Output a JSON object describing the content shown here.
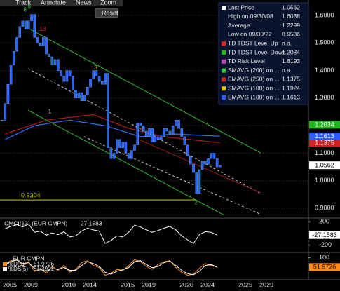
{
  "toolbar": {
    "items": [
      "Track",
      "Annotate",
      "News",
      "Zoom"
    ],
    "reset": "Reset"
  },
  "chart_data": [
    {
      "type": "candlestick",
      "x": [
        2006.25,
        2006.5,
        2006.75,
        2007,
        2007.25,
        2007.5,
        2007.75,
        2008,
        2008.25,
        2008.5,
        2008.75,
        2009,
        2009.25,
        2009.5,
        2009.75,
        2010,
        2010.25,
        2010.5,
        2010.75,
        2011,
        2011.25,
        2011.5,
        2011.75,
        2012,
        2012.25,
        2012.5,
        2012.75,
        2013,
        2013.25,
        2013.5,
        2013.75,
        2014,
        2014.25,
        2014.5,
        2014.75,
        2015,
        2015.25,
        2015.5,
        2015.75,
        2016,
        2016.25,
        2016.5,
        2016.75,
        2017,
        2017.25,
        2017.5,
        2017.75,
        2018,
        2018.25,
        2018.5,
        2018.75,
        2019,
        2019.25,
        2019.5,
        2019.75,
        2020,
        2020.25,
        2020.5,
        2020.75,
        2021,
        2021.25,
        2021.5,
        2021.75,
        2022,
        2022.25,
        2022.5,
        2022.75,
        2023,
        2023.25,
        2023.5,
        2023.75,
        2024,
        2024.25,
        2024.5,
        2024.75
      ],
      "series": [
        {
          "color": "#2563ff",
          "values": [
            1.22,
            1.28,
            1.35,
            1.42,
            1.47,
            1.52,
            1.56,
            1.58,
            1.55,
            1.58,
            1.6038,
            1.52,
            1.5,
            1.49,
            1.52,
            1.46,
            1.45,
            1.42,
            1.44,
            1.4,
            1.38,
            1.36,
            1.4,
            1.38,
            1.33,
            1.3,
            1.32,
            1.29,
            1.31,
            1.34,
            1.37,
            1.4,
            1.38,
            1.36,
            1.35,
            1.39,
            1.12,
            1.08,
            1.1,
            1.15,
            1.12,
            1.14,
            1.1,
            1.08,
            1.11,
            1.13,
            1.21,
            1.2,
            1.18,
            1.16,
            1.19,
            1.14,
            1.16,
            1.15,
            1.16,
            1.19,
            1.18,
            1.17,
            1.2,
            1.22,
            1.19,
            1.16,
            1.13,
            1.09,
            1.06,
            1.03,
            0.9536,
            1.04,
            1.07,
            1.06,
            1.08,
            1.1,
            1.08,
            1.05,
            1.0562
          ]
        }
      ],
      "xlim": [
        2006.07,
        2032.26
      ],
      "xticks": [
        2005,
        2009,
        2010,
        2014,
        2015,
        2019,
        2020,
        2024,
        2025,
        2029
      ],
      "ylim": [
        0.867,
        1.656
      ],
      "yticks": [
        {
          "value": 1.6,
          "label": "1.6000"
        },
        {
          "value": 1.5,
          "label": "1.5000"
        },
        {
          "value": 1.4,
          "label": "1.4000"
        },
        {
          "value": 1.3,
          "label": "1.3000"
        },
        {
          "value": 1.2,
          "label": "1.2000"
        },
        {
          "value": 1.1,
          "label": "1.1000"
        },
        {
          "value": 1.0,
          "label": "1.0000"
        },
        {
          "value": 0.9,
          "label": "0.9000"
        }
      ],
      "grid": true,
      "levels": [
        {
          "value": 0.9304,
          "color": "#c8c800"
        }
      ],
      "trendlines": [
        {
          "color": "#2fb82f",
          "x": [
            2008.45,
            2028.2
          ],
          "values": [
            1.554,
            1.101
          ]
        },
        {
          "color": "#cfcfcf",
          "x": [
            2008.45,
            2028.2
          ],
          "values": [
            1.407,
            0.954
          ],
          "dashed": true
        },
        {
          "color": "#2fb82f",
          "x": [
            2008.45,
            2025.1
          ],
          "values": [
            1.256,
            0.875
          ]
        },
        {
          "color": "#cfcfcf",
          "x": [
            2013.2,
            2028.1
          ],
          "values": [
            1.16,
            0.88
          ],
          "dashed": true
        },
        {
          "color": "#a01818",
          "x": [
            2018,
            2028.2
          ],
          "values": [
            1.147,
            0.956
          ]
        }
      ],
      "overlays": [
        {
          "color": "#3070ff",
          "x": [
            2006.5,
            2009,
            2012,
            2015,
            2018,
            2021,
            2024.75
          ],
          "values": [
            1.15,
            1.2,
            1.22,
            1.2,
            1.16,
            1.17,
            1.1613
          ]
        },
        {
          "color": "#b01c1c",
          "x": [
            2006.5,
            2010,
            2014,
            2017,
            2020,
            2024.75
          ],
          "values": [
            1.17,
            1.22,
            1.24,
            1.19,
            1.16,
            1.1375
          ]
        }
      ],
      "td_counts": [
        {
          "text": "8",
          "x": 2008.2,
          "y": 1.62,
          "color": "#2fd02f"
        },
        {
          "text": "9",
          "x": 2008.55,
          "y": 1.63,
          "color": "#2fd02f"
        },
        {
          "text": "13",
          "x": 2009.7,
          "y": 1.55,
          "color": "#e02020"
        },
        {
          "text": "1",
          "x": 2010.3,
          "y": 1.25,
          "color": "#e6e6e6"
        },
        {
          "text": "3",
          "x": 2014.2,
          "y": 1.41,
          "color": "#c8c800"
        },
        {
          "text": "2",
          "x": 2022.7,
          "y": 0.92,
          "color": "#2fd02f"
        }
      ],
      "legend_position": "upper right",
      "legend": [
        {
          "label": "Last Price",
          "color": "#ffffff",
          "value": 1.0562,
          "tag": true
        },
        {
          "label": "High on 09/30/08",
          "value": 1.6038
        },
        {
          "label": "Average",
          "value": 1.2299
        },
        {
          "label": "Low on 09/30/22",
          "value": 0.9536
        },
        {
          "label": "TD TDST Level Up",
          "color": "#e02020",
          "value": "n.a."
        },
        {
          "label": "TD TDST Level Down",
          "color": "#20b820",
          "value": 1.2034,
          "tag": true
        },
        {
          "label": "TD Risk Level",
          "color": "#c040c0",
          "value": 1.8193
        },
        {
          "label": "SMAVG (200) on ...",
          "color": "#40c040",
          "value": "n.a."
        },
        {
          "label": "EMAVG (250) on ...",
          "color": "#d02020",
          "value": 1.1375,
          "tag": true
        },
        {
          "label": "SMAVG (100) on ...",
          "color": "#e0c000",
          "value": 1.1924
        },
        {
          "label": "EMAVG (100) on ...",
          "color": "#2a5cff",
          "value": 1.1613,
          "tag": true
        }
      ]
    },
    {
      "type": "line",
      "title": "CMCI(13) (EUR CMPN)",
      "x": [
        2006.5,
        2007,
        2007.5,
        2008,
        2008.5,
        2009,
        2009.5,
        2010,
        2010.5,
        2011,
        2011.5,
        2012,
        2012.5,
        2013,
        2013.5,
        2014,
        2014.5,
        2015,
        2015.5,
        2016,
        2016.5,
        2017,
        2017.5,
        2018,
        2018.5,
        2019,
        2019.5,
        2020,
        2020.5,
        2021,
        2021.5,
        2022,
        2022.5,
        2023,
        2023.5,
        2024,
        2024.5
      ],
      "series": [
        {
          "color": "#ffffff",
          "values": [
            80,
            120,
            150,
            110,
            160,
            20,
            40,
            -30,
            10,
            -20,
            30,
            -60,
            -40,
            40,
            90,
            60,
            40,
            -170,
            -120,
            -40,
            -60,
            20,
            140,
            110,
            60,
            20,
            50,
            90,
            120,
            60,
            -40,
            -110,
            -170,
            -20,
            30,
            20,
            -27.1583
          ]
        }
      ],
      "xlim": [
        2006.07,
        2032.26
      ],
      "ylim": [
        -300,
        250
      ],
      "yticks": [
        200,
        -200
      ]
    },
    {
      "type": "line",
      "title": "EUR CMPN",
      "x": [
        2006.5,
        2007,
        2007.5,
        2008,
        2008.5,
        2009,
        2009.5,
        2010,
        2010.5,
        2011,
        2011.5,
        2012,
        2012.5,
        2013,
        2013.5,
        2014,
        2014.5,
        2015,
        2015.5,
        2016,
        2016.5,
        2017,
        2017.5,
        2018,
        2018.5,
        2019,
        2019.5,
        2020,
        2020.5,
        2021,
        2021.5,
        2022,
        2022.5,
        2023,
        2023.5,
        2024,
        2024.5
      ],
      "series": [
        {
          "name": "%D(5)",
          "color": "#ff8c1a",
          "values": [
            70,
            85,
            90,
            60,
            80,
            30,
            45,
            20,
            55,
            35,
            60,
            25,
            40,
            75,
            85,
            60,
            50,
            10,
            20,
            40,
            35,
            60,
            90,
            80,
            55,
            40,
            65,
            80,
            85,
            50,
            25,
            10,
            15,
            45,
            70,
            60,
            51.9726
          ]
        },
        {
          "name": "%DS(5)",
          "color": "#ffffff",
          "values": [
            65,
            80,
            88,
            70,
            75,
            45,
            40,
            30,
            45,
            40,
            50,
            35,
            35,
            60,
            80,
            70,
            55,
            25,
            15,
            30,
            38,
            50,
            80,
            85,
            65,
            48,
            55,
            75,
            82,
            60,
            35,
            18,
            12,
            30,
            60,
            65,
            51.3901
          ]
        }
      ],
      "xlim": [
        2006.07,
        2032.26
      ],
      "ylim": [
        -10,
        120
      ],
      "yticks": [
        100
      ]
    }
  ]
}
